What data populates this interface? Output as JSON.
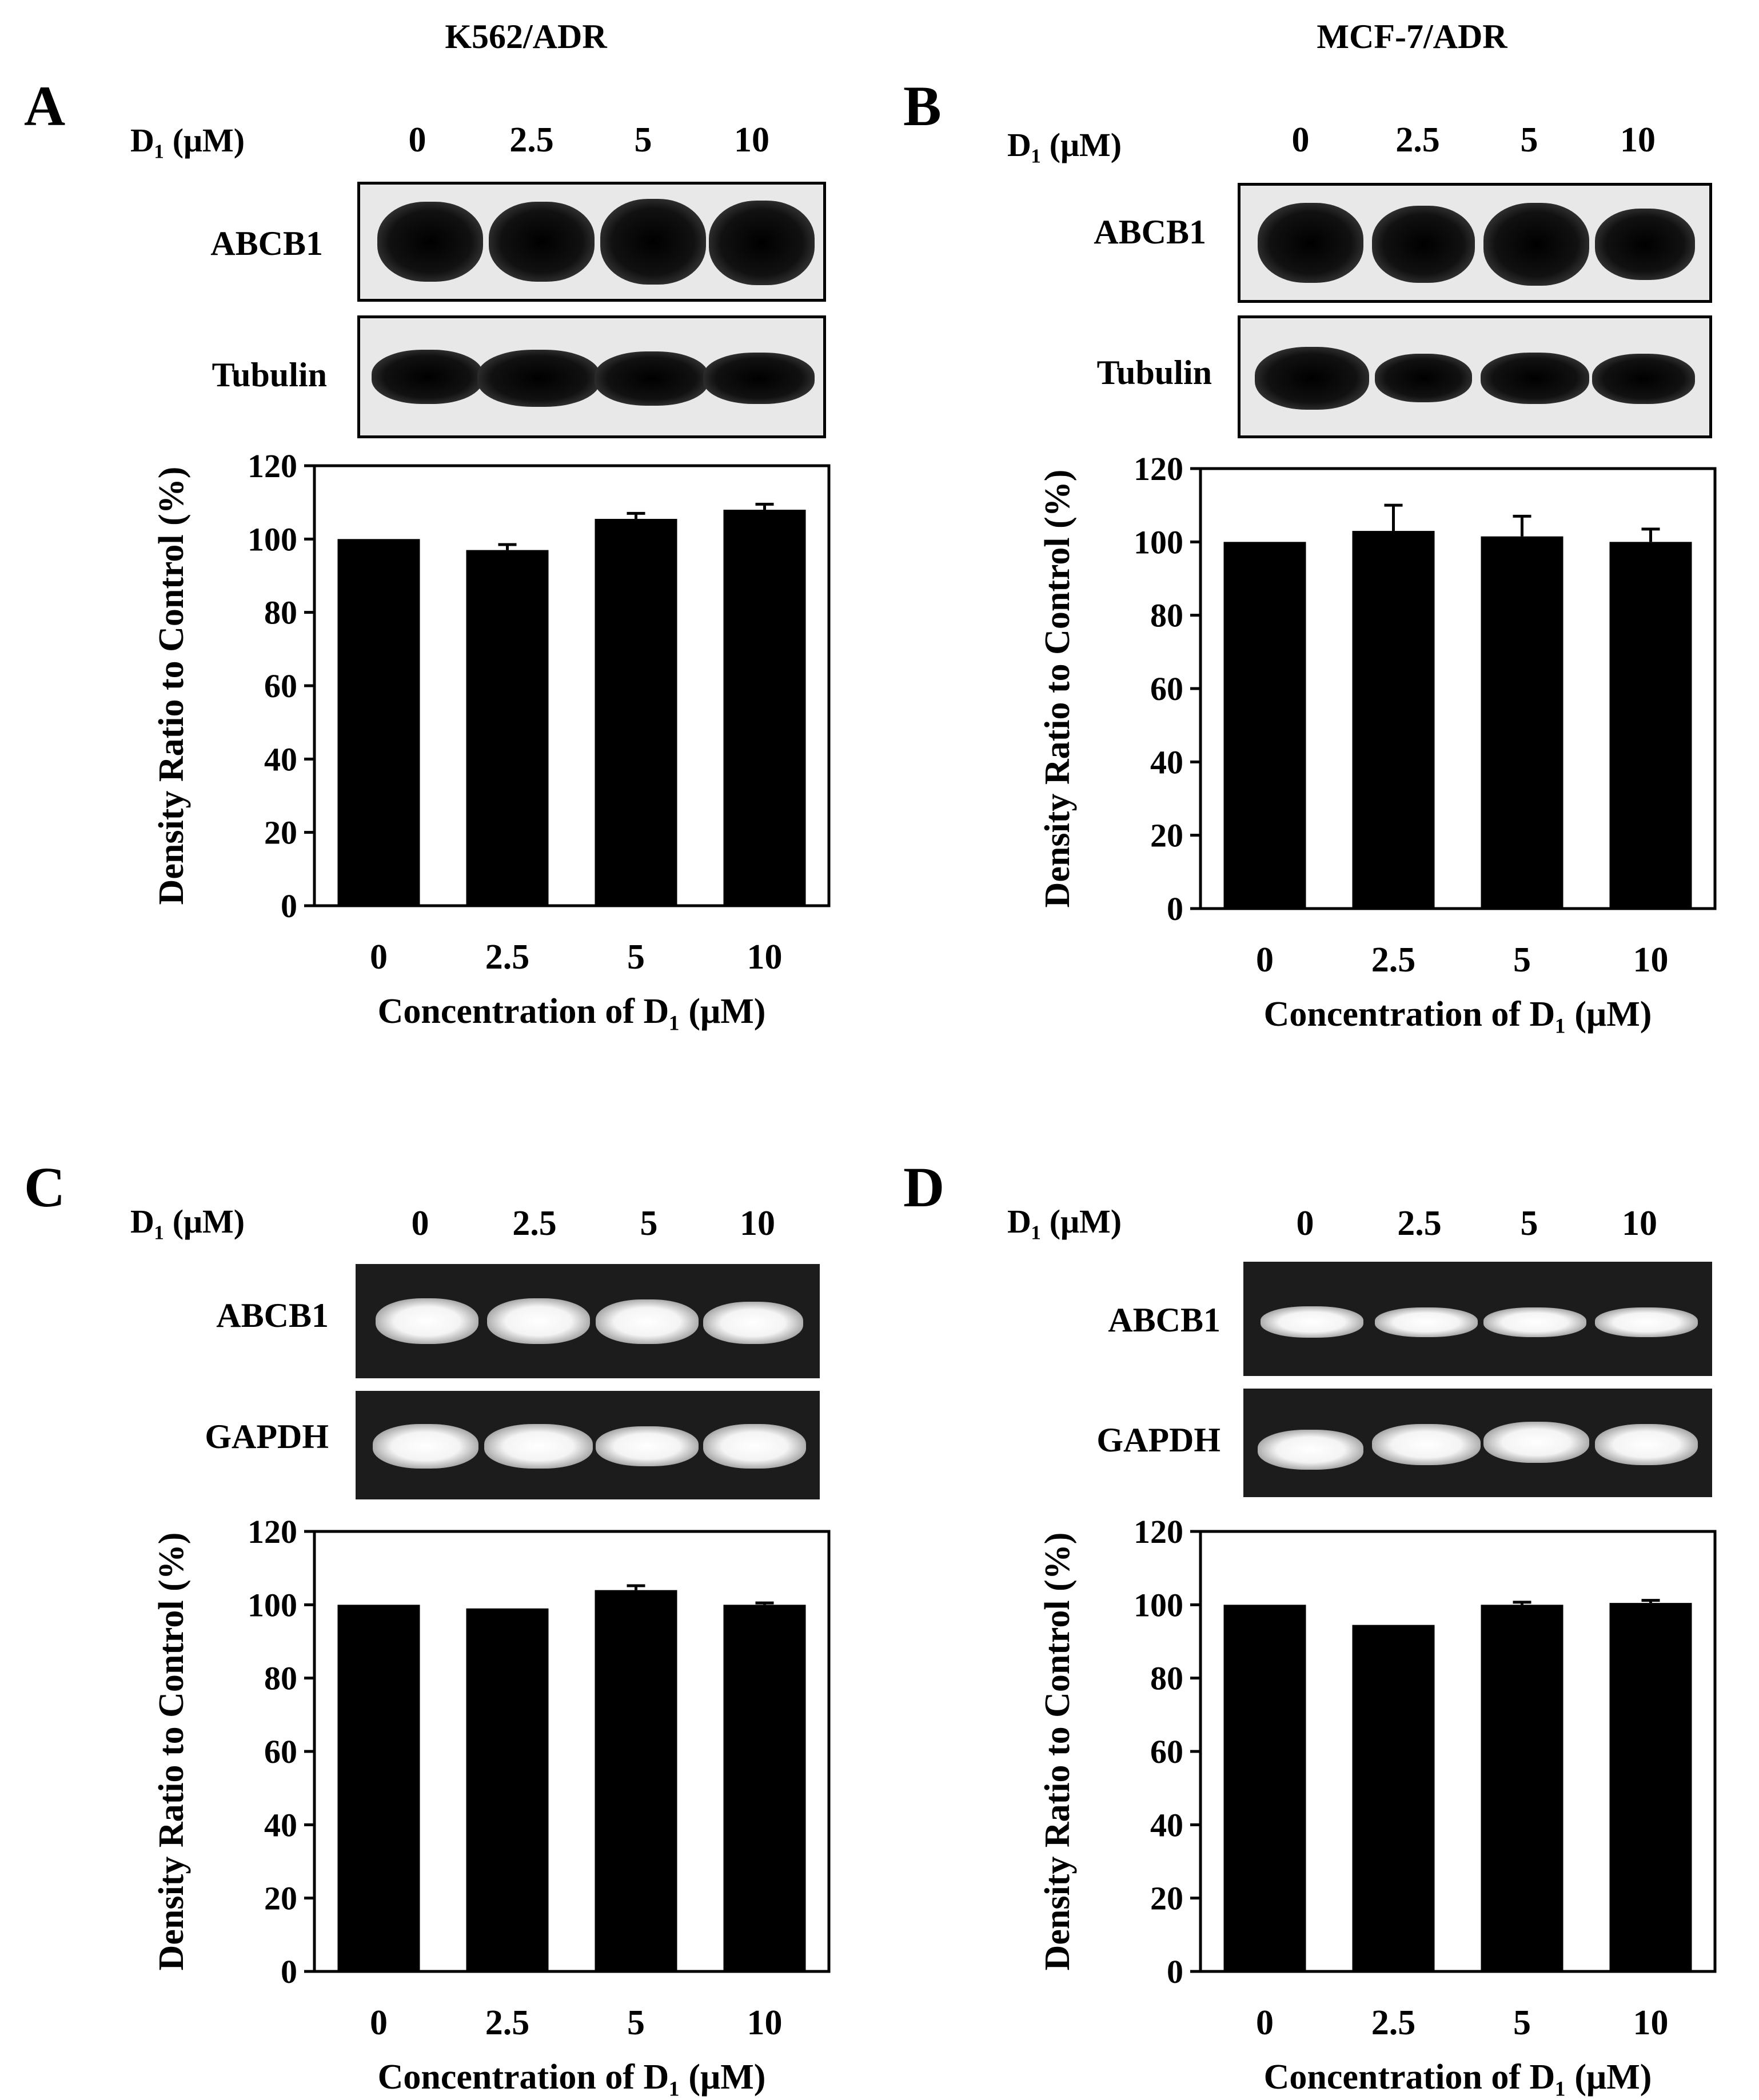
{
  "column_titles": [
    "K562/ADR",
    "MCF-7/ADR"
  ],
  "panels": [
    {
      "letter": "A",
      "dose_label": "D₁ (μM)",
      "concentrations": [
        "0",
        "2.5",
        "5",
        "10"
      ],
      "blot_type": "western",
      "target_label": "ABCB1",
      "control_label": "Tubulin"
    },
    {
      "letter": "B",
      "dose_label": "D₁ (μM)",
      "concentrations": [
        "0",
        "2.5",
        "5",
        "10"
      ],
      "blot_type": "western",
      "target_label": "ABCB1",
      "control_label": "Tubulin"
    },
    {
      "letter": "C",
      "dose_label": "D₁ (μM)",
      "concentrations": [
        "0",
        "2.5",
        "5",
        "10"
      ],
      "blot_type": "pcr",
      "target_label": "ABCB1",
      "control_label": "GAPDH"
    },
    {
      "letter": "D",
      "dose_label": "D₁ (μM)",
      "concentrations": [
        "0",
        "2.5",
        "5",
        "10"
      ],
      "blot_type": "pcr",
      "target_label": "ABCB1",
      "control_label": "GAPDH"
    }
  ],
  "colors": {
    "bar": "#000000",
    "background": "#ffffff"
  },
  "chart_data": [
    {
      "type": "bar",
      "categories": [
        "0",
        "2.5",
        "5",
        "10"
      ],
      "values": [
        100,
        97,
        105.5,
        108
      ],
      "errors": [
        0,
        1.5,
        1.5,
        1.5
      ],
      "title": "",
      "xlabel": "Concentration  of D₁ (μM)",
      "ylabel": "Density Ratio to Control (%)",
      "ylim": [
        0,
        120
      ],
      "yticks": [
        0,
        20,
        40,
        60,
        80,
        100,
        120
      ],
      "grid": false
    },
    {
      "type": "bar",
      "categories": [
        "0",
        "2.5",
        "5",
        "10"
      ],
      "values": [
        100,
        103,
        101.5,
        100
      ],
      "errors": [
        0,
        7,
        5.5,
        3.5
      ],
      "title": "",
      "xlabel": "Concentration  of D₁ (μM)",
      "ylabel": "Density Ratio to Control (%)",
      "ylim": [
        0,
        120
      ],
      "yticks": [
        0,
        20,
        40,
        60,
        80,
        100,
        120
      ],
      "grid": false
    },
    {
      "type": "bar",
      "categories": [
        "0",
        "2.5",
        "5",
        "10"
      ],
      "values": [
        100,
        99,
        104,
        100
      ],
      "errors": [
        0,
        0,
        1.2,
        0.5
      ],
      "title": "",
      "xlabel": "Concentration  of D₁ (μM)",
      "ylabel": "Density Ratio to Control (%)",
      "ylim": [
        0,
        120
      ],
      "yticks": [
        0,
        20,
        40,
        60,
        80,
        100,
        120
      ],
      "grid": false
    },
    {
      "type": "bar",
      "categories": [
        "0",
        "2.5",
        "5",
        "10"
      ],
      "values": [
        100,
        94.5,
        100,
        100.5
      ],
      "errors": [
        0,
        0,
        0.7,
        0.7
      ],
      "title": "",
      "xlabel": "Concentration  of D₁ (μM)",
      "ylabel": "Density Ratio to Control (%)",
      "ylim": [
        0,
        120
      ],
      "yticks": [
        0,
        20,
        40,
        60,
        80,
        100,
        120
      ],
      "grid": false
    }
  ]
}
